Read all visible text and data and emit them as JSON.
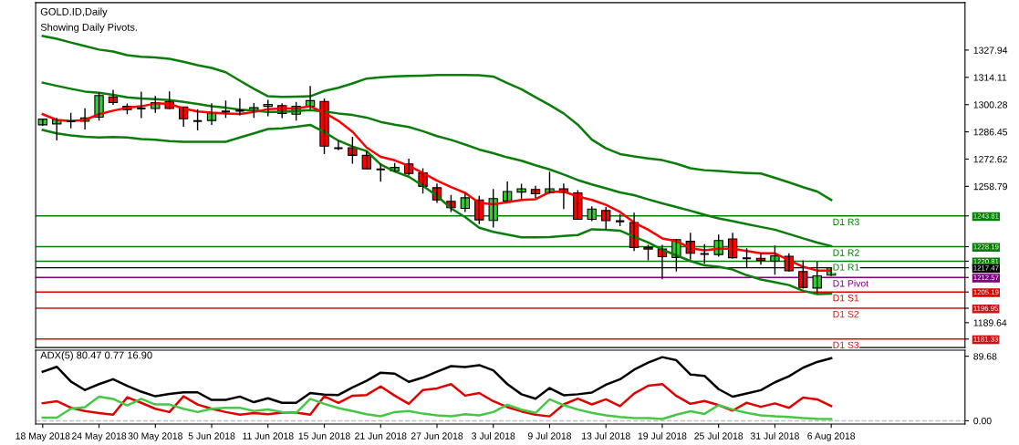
{
  "chart_data": [
    {
      "type": "candlestick",
      "title": "GOLD.ID,Daily",
      "subtitle": "Showing Daily Pivots.",
      "categories": [
        null,
        null,
        null,
        null,
        null,
        null,
        null,
        null,
        null,
        null,
        null,
        null,
        null,
        null,
        null,
        null,
        null,
        null,
        null,
        null,
        null,
        null,
        null,
        null,
        null,
        null,
        null,
        null,
        null,
        null,
        null,
        null,
        null,
        null,
        null,
        null,
        null,
        null,
        null,
        null,
        null,
        null,
        null,
        null,
        null,
        null,
        null,
        null,
        null,
        null,
        null,
        null,
        null,
        null,
        null,
        null,
        null
      ],
      "ohlc": [
        [
          1290.0,
          1293.2,
          1289.5,
          1292.9
        ],
        [
          1290.5,
          1293.6,
          1282.1,
          1292.5
        ],
        [
          1291.8,
          1296.1,
          1288.2,
          1291.8
        ],
        [
          1291.8,
          1298.4,
          1287.6,
          1293.5
        ],
        [
          1293.9,
          1306.6,
          1292.2,
          1304.9
        ],
        [
          1304.2,
          1307.8,
          1300.1,
          1301.3
        ],
        [
          1299.4,
          1300.8,
          1295.4,
          1297.7
        ],
        [
          1298.3,
          1306.9,
          1293.4,
          1298.3
        ],
        [
          1298.3,
          1304.7,
          1296.1,
          1301.3
        ],
        [
          1301.9,
          1307.0,
          1298.0,
          1298.3
        ],
        [
          1299.1,
          1299.1,
          1289.0,
          1293.1
        ],
        [
          1291.9,
          1298.0,
          1287.2,
          1291.9
        ],
        [
          1292.2,
          1300.9,
          1290.0,
          1296.1
        ],
        [
          1296.8,
          1302.3,
          1293.6,
          1296.8
        ],
        [
          1297.2,
          1303.5,
          1294.8,
          1297.2
        ],
        [
          1297.2,
          1301.1,
          1293.6,
          1298.7
        ],
        [
          1299.4,
          1302.7,
          1294.4,
          1300.4
        ],
        [
          1299.8,
          1300.9,
          1293.4,
          1295.8
        ],
        [
          1295.4,
          1301.6,
          1292.2,
          1299.4
        ],
        [
          1299.4,
          1309.8,
          1298.0,
          1302.3
        ],
        [
          1301.9,
          1303.4,
          1275.2,
          1279.2
        ],
        [
          1278.2,
          1282.1,
          1277.1,
          1278.2
        ],
        [
          1278.4,
          1283.9,
          1270.3,
          1274.5
        ],
        [
          1274.5,
          1276.7,
          1267.4,
          1267.7
        ],
        [
          1267.4,
          1270.3,
          1261.2,
          1267.4
        ],
        [
          1266.6,
          1270.6,
          1266.3,
          1268.4
        ],
        [
          1270.2,
          1272.8,
          1264.4,
          1265.3
        ],
        [
          1265.6,
          1268.0,
          1255.1,
          1258.8
        ],
        [
          1258.1,
          1260.2,
          1250.4,
          1251.9
        ],
        [
          1251.2,
          1254.5,
          1245.8,
          1248.0
        ],
        [
          1247.6,
          1255.1,
          1245.8,
          1253.0
        ],
        [
          1251.9,
          1254.0,
          1239.6,
          1241.8
        ],
        [
          1241.5,
          1257.4,
          1237.9,
          1252.6
        ],
        [
          1251.4,
          1261.3,
          1251.4,
          1256.2
        ],
        [
          1255.9,
          1260.1,
          1252.3,
          1257.6
        ],
        [
          1257.2,
          1259.1,
          1252.9,
          1255.0
        ],
        [
          1255.5,
          1266.3,
          1255.0,
          1257.6
        ],
        [
          1257.6,
          1260.2,
          1247.3,
          1255.8
        ],
        [
          1255.5,
          1256.9,
          1241.8,
          1242.1
        ],
        [
          1242.1,
          1248.7,
          1241.1,
          1247.3
        ],
        [
          1246.5,
          1248.3,
          1236.8,
          1241.4
        ],
        [
          1241.1,
          1244.7,
          1238.6,
          1241.1
        ],
        [
          1240.4,
          1245.4,
          1226.0,
          1227.8
        ],
        [
          1227.8,
          1229.1,
          1221.3,
          1227.0
        ],
        [
          1227.0,
          1229.1,
          1211.6,
          1223.1
        ],
        [
          1222.7,
          1232.0,
          1215.6,
          1231.7
        ],
        [
          1230.9,
          1235.2,
          1221.6,
          1224.9
        ],
        [
          1224.5,
          1229.5,
          1219.5,
          1224.5
        ],
        [
          1224.2,
          1234.3,
          1223.1,
          1231.3
        ],
        [
          1232.1,
          1235.2,
          1222.2,
          1222.6
        ],
        [
          1222.3,
          1227.4,
          1217.6,
          1222.3
        ],
        [
          1222.3,
          1225.2,
          1219.0,
          1221.2
        ],
        [
          1220.9,
          1228.8,
          1214.0,
          1223.5
        ],
        [
          1223.3,
          1224.8,
          1215.6,
          1215.9
        ],
        [
          1215.6,
          1221.3,
          1206.9,
          1207.5
        ],
        [
          1207.2,
          1220.5,
          1204.3,
          1213.4
        ],
        [
          1213.7,
          1217.6,
          1213.3,
          1217.5
        ]
      ],
      "colors": [
        "#32cd32",
        "#32cd32",
        "#000000",
        "#32cd32",
        "#32cd32",
        "#ff0000",
        "#ff0000",
        "#000000",
        "#32cd32",
        "#ff0000",
        "#ff0000",
        "#000000",
        "#32cd32",
        "#000000",
        "#000000",
        "#32cd32",
        "#32cd32",
        "#ff0000",
        "#32cd32",
        "#32cd32",
        "#ff0000",
        "#000000",
        "#ff0000",
        "#ff0000",
        "#000000",
        "#32cd32",
        "#ff0000",
        "#ff0000",
        "#ff0000",
        "#ff0000",
        "#32cd32",
        "#ff0000",
        "#32cd32",
        "#32cd32",
        "#32cd32",
        "#ff0000",
        "#32cd32",
        "#ff0000",
        "#ff0000",
        "#32cd32",
        "#ff0000",
        "#000000",
        "#ff0000",
        "#ff0000",
        "#ff0000",
        "#32cd32",
        "#ff0000",
        "#000000",
        "#32cd32",
        "#ff0000",
        "#000000",
        "#ff0000",
        "#32cd32",
        "#ff0000",
        "#ff0000",
        "#32cd32",
        "#32cd32"
      ],
      "series": [
        {
          "type": "line",
          "color": "#0a7d0a",
          "values": [
            1335.1,
            1333.7,
            1331.8,
            1330.0,
            1328.2,
            1327.2,
            1325.4,
            1324.6,
            1324.2,
            1323.5,
            1322.0,
            1320.3,
            1318.9,
            1316.7,
            1312.4,
            1308.3,
            1304.5,
            1304.2,
            1304.3,
            1304.5,
            1307.2,
            1308.8,
            1311.0,
            1313.5,
            1314.1,
            1314.6,
            1314.8,
            1315.0,
            1315.3,
            1315.3,
            1315.3,
            1315.2,
            1314.5,
            1311.2,
            1308.1,
            1304.0,
            1300.1,
            1295.8,
            1290.1,
            1282.5,
            1278.1,
            1275.2,
            1274.0,
            1273.0,
            1272.1,
            1270.3,
            1268.0,
            1267.0,
            1266.6,
            1266.0,
            1265.6,
            1265.3,
            1263.1,
            1260.8,
            1258.4,
            1256.2,
            1251.9
          ]
        },
        {
          "type": "line",
          "color": "#0a7d0a",
          "values": [
            1311.4,
            1309.8,
            1308.3,
            1306.9,
            1306.3,
            1305.2,
            1304.0,
            1303.4,
            1303.0,
            1302.6,
            1301.6,
            1300.6,
            1299.4,
            1298.7,
            1297.7,
            1297.2,
            1296.5,
            1296.5,
            1297.0,
            1297.5,
            1296.8,
            1295.8,
            1295.0,
            1293.7,
            1291.5,
            1290.1,
            1288.9,
            1286.8,
            1284.3,
            1282.4,
            1280.0,
            1277.5,
            1275.6,
            1273.5,
            1271.8,
            1269.5,
            1267.4,
            1264.8,
            1262.0,
            1259.8,
            1257.8,
            1255.7,
            1254.3,
            1252.2,
            1250.2,
            1248.3,
            1246.4,
            1244.4,
            1242.5,
            1241.1,
            1239.6,
            1238.2,
            1236.8,
            1234.6,
            1232.4,
            1230.3,
            1228.5
          ]
        },
        {
          "type": "line",
          "color": "#0a7d0a",
          "values": [
            1287.4,
            1285.7,
            1284.6,
            1284.0,
            1283.6,
            1283.8,
            1283.6,
            1282.8,
            1282.4,
            1281.8,
            1281.4,
            1281.4,
            1281.4,
            1281.4,
            1283.6,
            1285.7,
            1287.9,
            1288.2,
            1289.0,
            1290.0,
            1286.3,
            1282.0,
            1279.0,
            1276.7,
            1269.9,
            1266.3,
            1263.7,
            1259.1,
            1254.0,
            1247.6,
            1243.2,
            1237.8,
            1235.7,
            1234.3,
            1232.9,
            1232.9,
            1233.1,
            1233.6,
            1234.1,
            1237.0,
            1236.7,
            1236.3,
            1233.2,
            1230.3,
            1226.7,
            1223.8,
            1220.9,
            1218.7,
            1218.0,
            1216.6,
            1213.7,
            1211.5,
            1210.1,
            1208.7,
            1205.8,
            1204.1,
            1204.3
          ]
        },
        {
          "type": "line",
          "color": "#ff0000",
          "values": [
            1295.4,
            1292.5,
            1291.9,
            1292.5,
            1295.4,
            1297.2,
            1298.7,
            1299.4,
            1300.9,
            1300.6,
            1298.3,
            1296.8,
            1296.2,
            1295.8,
            1295.5,
            1296.5,
            1298.0,
            1298.3,
            1298.3,
            1299.4,
            1296.2,
            1292.0,
            1286.5,
            1278.5,
            1273.8,
            1272.0,
            1269.2,
            1265.6,
            1261.7,
            1258.4,
            1255.5,
            1250.4,
            1249.7,
            1250.7,
            1251.9,
            1252.3,
            1255.9,
            1256.2,
            1253.6,
            1251.9,
            1249.4,
            1245.8,
            1240.4,
            1236.8,
            1232.4,
            1231.0,
            1227.4,
            1226.3,
            1227.1,
            1227.1,
            1226.0,
            1224.8,
            1224.8,
            1221.3,
            1218.0,
            1216.1,
            1216.1
          ]
        }
      ],
      "ref_lines": [
        {
          "axis": "y",
          "value": 1243.81,
          "label": "D1 R3",
          "color": "#008000"
        },
        {
          "axis": "y",
          "value": 1228.19,
          "label": "D1 R2",
          "color": "#008000"
        },
        {
          "axis": "y",
          "value": 1220.81,
          "label": "D1 R1",
          "color": "#008000"
        },
        {
          "axis": "y",
          "value": 1217.47,
          "label": null,
          "color": "#000000"
        },
        {
          "axis": "y",
          "value": 1212.57,
          "label": "D1 Pivot",
          "color": "#800080"
        },
        {
          "axis": "y",
          "value": 1205.19,
          "label": "D1 S1",
          "color": "#e00000"
        },
        {
          "axis": "y",
          "value": 1196.95,
          "label": "D1 S2",
          "color": "#c81414"
        },
        {
          "axis": "y",
          "value": 1181.33,
          "label": "D1 S3",
          "color": "#c81414"
        }
      ],
      "ylim": [
        1177,
        1352
      ],
      "yticks": [
        1327.94,
        1314.11,
        1300.28,
        1286.45,
        1272.62,
        1258.79,
        1243.81,
        1228.19,
        1220.81,
        1217.47,
        1212.57,
        1205.19,
        1196.95,
        1189.64,
        1181.33
      ]
    },
    {
      "type": "line",
      "title": "ADX(5) 80.47 0.77 16.90",
      "categories": [
        "18 May 2018",
        null,
        null,
        null,
        "24 May 2018",
        null,
        null,
        null,
        "30 May 2018",
        null,
        null,
        null,
        "5 Jun 2018",
        null,
        null,
        null,
        "11 Jun 2018",
        null,
        null,
        null,
        "15 Jun 2018",
        null,
        null,
        null,
        "21 Jun 2018",
        null,
        null,
        null,
        "27 Jun 2018",
        null,
        null,
        null,
        "3 Jul 2018",
        null,
        null,
        null,
        "9 Jul 2018",
        null,
        null,
        null,
        "13 Jul 2018",
        null,
        null,
        null,
        "19 Jul 2018",
        null,
        null,
        null,
        "25 Jul 2018",
        null,
        null,
        null,
        "31 Jul 2018",
        null,
        null,
        null,
        "6 Aug 2018"
      ],
      "series": [
        {
          "color": "#000000",
          "values": [
            68.2,
            75.0,
            54.5,
            42.7,
            50.9,
            57.7,
            48.6,
            40.4,
            34.0,
            37.2,
            39.5,
            39.5,
            29.0,
            29.0,
            33.6,
            25.8,
            31.3,
            24.9,
            24.9,
            38.6,
            36.3,
            35.8,
            46.3,
            55.4,
            66.8,
            65.5,
            54.1,
            60.0,
            68.2,
            75.9,
            74.6,
            77.3,
            70.0,
            50.9,
            36.8,
            30.7,
            45.4,
            35.4,
            36.8,
            39.2,
            50.1,
            57.6,
            70.9,
            80.8,
            88.4,
            84.1,
            64.3,
            62.4,
            43.9,
            33.5,
            37.8,
            42.5,
            53.4,
            61.9,
            73.7,
            81.7,
            86.9
          ]
        },
        {
          "color": "#e00000",
          "values": [
            24.4,
            27.2,
            18.0,
            13.5,
            10.8,
            8.5,
            32.6,
            24.9,
            16.7,
            12.1,
            34.0,
            22.6,
            16.7,
            12.1,
            8.5,
            10.8,
            9.0,
            11.2,
            11.2,
            8.5,
            34.0,
            24.9,
            34.9,
            35.8,
            47.7,
            34.9,
            23.5,
            42.7,
            45.0,
            50.9,
            34.9,
            38.6,
            27.2,
            19.0,
            13.0,
            8.5,
            6.1,
            22.7,
            30.7,
            22.7,
            29.8,
            20.3,
            37.8,
            48.7,
            51.0,
            34.5,
            23.6,
            27.4,
            21.7,
            14.2,
            25.0,
            19.4,
            24.1,
            17.9,
            32.1,
            29.8,
            20.3
          ]
        },
        {
          "color": "#45c845",
          "values": [
            4.4,
            4.4,
            16.7,
            19.0,
            33.6,
            30.4,
            21.3,
            30.4,
            22.6,
            22.6,
            16.7,
            12.1,
            16.7,
            18.1,
            18.1,
            13.5,
            15.8,
            12.1,
            10.8,
            30.4,
            23.5,
            17.6,
            13.5,
            9.0,
            6.2,
            12.1,
            13.5,
            9.9,
            7.6,
            6.2,
            9.0,
            7.6,
            12.1,
            22.2,
            15.4,
            10.9,
            29.8,
            21.7,
            15.6,
            10.9,
            7.6,
            5.2,
            3.8,
            3.8,
            2.4,
            8.5,
            13.2,
            9.5,
            21.7,
            15.6,
            10.9,
            7.6,
            6.1,
            5.2,
            3.8,
            2.8,
            2.4
          ]
        }
      ],
      "ref_lines": [
        {
          "axis": "y",
          "value": 0,
          "color": "#c0c0c0",
          "line_style": "dashed"
        }
      ],
      "ylim": [
        -4.6,
        98
      ],
      "yticks": [
        {
          "value": 0,
          "label": "0.00"
        },
        89.68
      ]
    }
  ]
}
